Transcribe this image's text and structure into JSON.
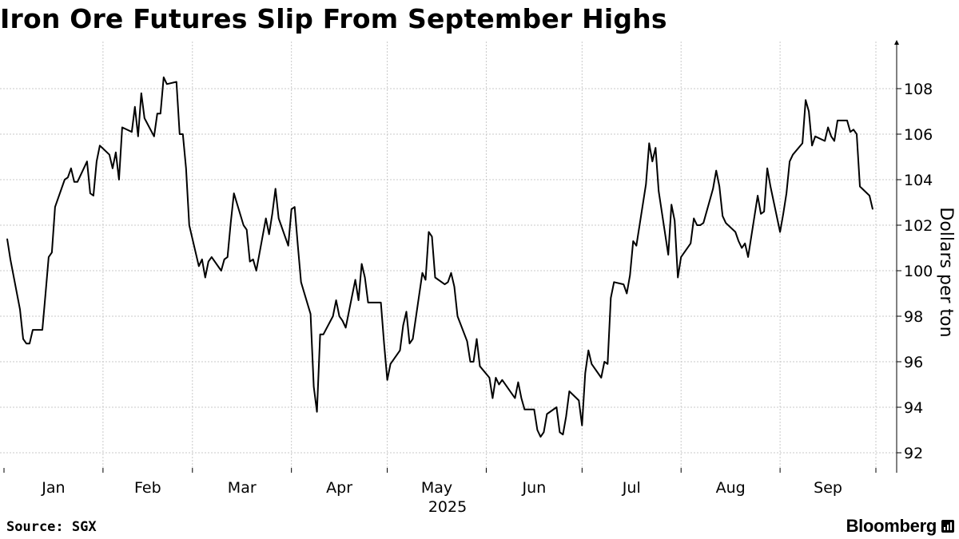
{
  "title": "Iron Ore Futures Slip From September Highs",
  "source": "Source: SGX",
  "brand": "Bloomberg",
  "brand_icon": "bloomberg-terminal-icon",
  "chart_data": {
    "type": "line",
    "title": "Iron Ore Futures Slip From September Highs",
    "ylabel": "Dollars per ton",
    "xlabel": "2025",
    "year_label": "2025",
    "months": [
      "Jan",
      "Feb",
      "Mar",
      "Apr",
      "May",
      "Jun",
      "Jul",
      "Aug",
      "Sep"
    ],
    "ylim": [
      91,
      110
    ],
    "yticks": [
      92,
      94,
      96,
      98,
      100,
      102,
      104,
      106,
      108
    ],
    "grid": true,
    "line_color": "#000000",
    "series": [
      {
        "points": [
          [
            "2025-01-02",
            101.4
          ],
          [
            "2025-01-03",
            100.5
          ],
          [
            "2025-01-06",
            98.3
          ],
          [
            "2025-01-07",
            97.0
          ],
          [
            "2025-01-08",
            96.8
          ],
          [
            "2025-01-09",
            96.8
          ],
          [
            "2025-01-10",
            97.4
          ],
          [
            "2025-01-13",
            97.4
          ],
          [
            "2025-01-14",
            99.0
          ],
          [
            "2025-01-15",
            100.6
          ],
          [
            "2025-01-16",
            100.8
          ],
          [
            "2025-01-17",
            102.8
          ],
          [
            "2025-01-20",
            104.0
          ],
          [
            "2025-01-21",
            104.1
          ],
          [
            "2025-01-22",
            104.5
          ],
          [
            "2025-01-23",
            103.9
          ],
          [
            "2025-01-24",
            103.9
          ],
          [
            "2025-01-27",
            104.8
          ],
          [
            "2025-01-28",
            103.4
          ],
          [
            "2025-01-29",
            103.3
          ],
          [
            "2025-01-30",
            104.8
          ],
          [
            "2025-01-31",
            105.5
          ],
          [
            "2025-02-03",
            105.1
          ],
          [
            "2025-02-04",
            104.5
          ],
          [
            "2025-02-05",
            105.2
          ],
          [
            "2025-02-06",
            104.0
          ],
          [
            "2025-02-07",
            106.3
          ],
          [
            "2025-02-10",
            106.1
          ],
          [
            "2025-02-11",
            107.2
          ],
          [
            "2025-02-12",
            105.9
          ],
          [
            "2025-02-13",
            107.8
          ],
          [
            "2025-02-14",
            106.7
          ],
          [
            "2025-02-17",
            105.9
          ],
          [
            "2025-02-18",
            106.9
          ],
          [
            "2025-02-19",
            106.9
          ],
          [
            "2025-02-20",
            108.5
          ],
          [
            "2025-02-21",
            108.2
          ],
          [
            "2025-02-24",
            108.3
          ],
          [
            "2025-02-25",
            106.0
          ],
          [
            "2025-02-26",
            106.0
          ],
          [
            "2025-02-27",
            104.5
          ],
          [
            "2025-02-28",
            102.0
          ],
          [
            "2025-03-03",
            100.2
          ],
          [
            "2025-03-04",
            100.5
          ],
          [
            "2025-03-05",
            99.7
          ],
          [
            "2025-03-06",
            100.4
          ],
          [
            "2025-03-07",
            100.6
          ],
          [
            "2025-03-10",
            100.0
          ],
          [
            "2025-03-11",
            100.5
          ],
          [
            "2025-03-12",
            100.6
          ],
          [
            "2025-03-13",
            102.1
          ],
          [
            "2025-03-14",
            103.4
          ],
          [
            "2025-03-17",
            102.0
          ],
          [
            "2025-03-18",
            101.8
          ],
          [
            "2025-03-19",
            100.4
          ],
          [
            "2025-03-20",
            100.5
          ],
          [
            "2025-03-21",
            100.0
          ],
          [
            "2025-03-24",
            102.3
          ],
          [
            "2025-03-25",
            101.6
          ],
          [
            "2025-03-26",
            102.5
          ],
          [
            "2025-03-27",
            103.6
          ],
          [
            "2025-03-28",
            102.3
          ],
          [
            "2025-03-31",
            101.1
          ],
          [
            "2025-04-01",
            102.7
          ],
          [
            "2025-04-02",
            102.8
          ],
          [
            "2025-04-03",
            101.1
          ],
          [
            "2025-04-04",
            99.5
          ],
          [
            "2025-04-07",
            98.1
          ],
          [
            "2025-04-08",
            94.9
          ],
          [
            "2025-04-09",
            93.8
          ],
          [
            "2025-04-10",
            97.2
          ],
          [
            "2025-04-11",
            97.2
          ],
          [
            "2025-04-14",
            98.0
          ],
          [
            "2025-04-15",
            98.7
          ],
          [
            "2025-04-16",
            98.0
          ],
          [
            "2025-04-17",
            97.8
          ],
          [
            "2025-04-18",
            97.5
          ],
          [
            "2025-04-21",
            99.6
          ],
          [
            "2025-04-22",
            98.7
          ],
          [
            "2025-04-23",
            100.3
          ],
          [
            "2025-04-24",
            99.7
          ],
          [
            "2025-04-25",
            98.6
          ],
          [
            "2025-04-28",
            98.6
          ],
          [
            "2025-04-29",
            98.6
          ],
          [
            "2025-04-30",
            96.8
          ],
          [
            "2025-05-01",
            95.2
          ],
          [
            "2025-05-02",
            95.9
          ],
          [
            "2025-05-05",
            96.5
          ],
          [
            "2025-05-06",
            97.6
          ],
          [
            "2025-05-07",
            98.2
          ],
          [
            "2025-05-08",
            96.8
          ],
          [
            "2025-05-09",
            97.0
          ],
          [
            "2025-05-12",
            99.9
          ],
          [
            "2025-05-13",
            99.6
          ],
          [
            "2025-05-14",
            101.7
          ],
          [
            "2025-05-15",
            101.5
          ],
          [
            "2025-05-16",
            99.7
          ],
          [
            "2025-05-19",
            99.4
          ],
          [
            "2025-05-20",
            99.5
          ],
          [
            "2025-05-21",
            99.9
          ],
          [
            "2025-05-22",
            99.3
          ],
          [
            "2025-05-23",
            98.0
          ],
          [
            "2025-05-26",
            96.9
          ],
          [
            "2025-05-27",
            96.0
          ],
          [
            "2025-05-28",
            96.0
          ],
          [
            "2025-05-29",
            97.0
          ],
          [
            "2025-05-30",
            95.8
          ],
          [
            "2025-06-02",
            95.3
          ],
          [
            "2025-06-03",
            94.4
          ],
          [
            "2025-06-04",
            95.3
          ],
          [
            "2025-06-05",
            95.0
          ],
          [
            "2025-06-06",
            95.2
          ],
          [
            "2025-06-09",
            94.6
          ],
          [
            "2025-06-10",
            94.4
          ],
          [
            "2025-06-11",
            95.1
          ],
          [
            "2025-06-12",
            94.4
          ],
          [
            "2025-06-13",
            93.9
          ],
          [
            "2025-06-16",
            93.9
          ],
          [
            "2025-06-17",
            93.0
          ],
          [
            "2025-06-18",
            92.7
          ],
          [
            "2025-06-19",
            92.9
          ],
          [
            "2025-06-20",
            93.7
          ],
          [
            "2025-06-23",
            94.0
          ],
          [
            "2025-06-24",
            92.9
          ],
          [
            "2025-06-25",
            92.8
          ],
          [
            "2025-06-26",
            93.6
          ],
          [
            "2025-06-27",
            94.7
          ],
          [
            "2025-06-30",
            94.3
          ],
          [
            "2025-07-01",
            93.2
          ],
          [
            "2025-07-02",
            95.5
          ],
          [
            "2025-07-03",
            96.5
          ],
          [
            "2025-07-04",
            95.9
          ],
          [
            "2025-07-07",
            95.3
          ],
          [
            "2025-07-08",
            96.0
          ],
          [
            "2025-07-09",
            95.9
          ],
          [
            "2025-07-10",
            98.8
          ],
          [
            "2025-07-11",
            99.5
          ],
          [
            "2025-07-14",
            99.4
          ],
          [
            "2025-07-15",
            99.0
          ],
          [
            "2025-07-16",
            99.8
          ],
          [
            "2025-07-17",
            101.3
          ],
          [
            "2025-07-18",
            101.1
          ],
          [
            "2025-07-21",
            103.8
          ],
          [
            "2025-07-22",
            105.6
          ],
          [
            "2025-07-23",
            104.8
          ],
          [
            "2025-07-24",
            105.4
          ],
          [
            "2025-07-25",
            103.5
          ],
          [
            "2025-07-28",
            100.7
          ],
          [
            "2025-07-29",
            102.9
          ],
          [
            "2025-07-30",
            102.2
          ],
          [
            "2025-07-31",
            99.7
          ],
          [
            "2025-08-01",
            100.6
          ],
          [
            "2025-08-04",
            101.2
          ],
          [
            "2025-08-05",
            102.3
          ],
          [
            "2025-08-06",
            102.0
          ],
          [
            "2025-08-07",
            102.0
          ],
          [
            "2025-08-08",
            102.1
          ],
          [
            "2025-08-11",
            103.6
          ],
          [
            "2025-08-12",
            104.4
          ],
          [
            "2025-08-13",
            103.7
          ],
          [
            "2025-08-14",
            102.4
          ],
          [
            "2025-08-15",
            102.1
          ],
          [
            "2025-08-18",
            101.7
          ],
          [
            "2025-08-19",
            101.3
          ],
          [
            "2025-08-20",
            101.0
          ],
          [
            "2025-08-21",
            101.2
          ],
          [
            "2025-08-22",
            100.6
          ],
          [
            "2025-08-25",
            103.3
          ],
          [
            "2025-08-26",
            102.5
          ],
          [
            "2025-08-27",
            102.6
          ],
          [
            "2025-08-28",
            104.5
          ],
          [
            "2025-08-29",
            103.7
          ],
          [
            "2025-09-01",
            101.7
          ],
          [
            "2025-09-02",
            102.5
          ],
          [
            "2025-09-03",
            103.4
          ],
          [
            "2025-09-04",
            104.8
          ],
          [
            "2025-09-05",
            105.1
          ],
          [
            "2025-09-08",
            105.6
          ],
          [
            "2025-09-09",
            107.5
          ],
          [
            "2025-09-10",
            107.0
          ],
          [
            "2025-09-11",
            105.5
          ],
          [
            "2025-09-12",
            105.9
          ],
          [
            "2025-09-15",
            105.7
          ],
          [
            "2025-09-16",
            106.3
          ],
          [
            "2025-09-17",
            105.9
          ],
          [
            "2025-09-18",
            105.7
          ],
          [
            "2025-09-19",
            106.6
          ],
          [
            "2025-09-22",
            106.6
          ],
          [
            "2025-09-23",
            106.1
          ],
          [
            "2025-09-24",
            106.2
          ],
          [
            "2025-09-25",
            106.0
          ],
          [
            "2025-09-26",
            103.7
          ],
          [
            "2025-09-29",
            103.3
          ],
          [
            "2025-09-30",
            102.7
          ]
        ]
      }
    ]
  }
}
